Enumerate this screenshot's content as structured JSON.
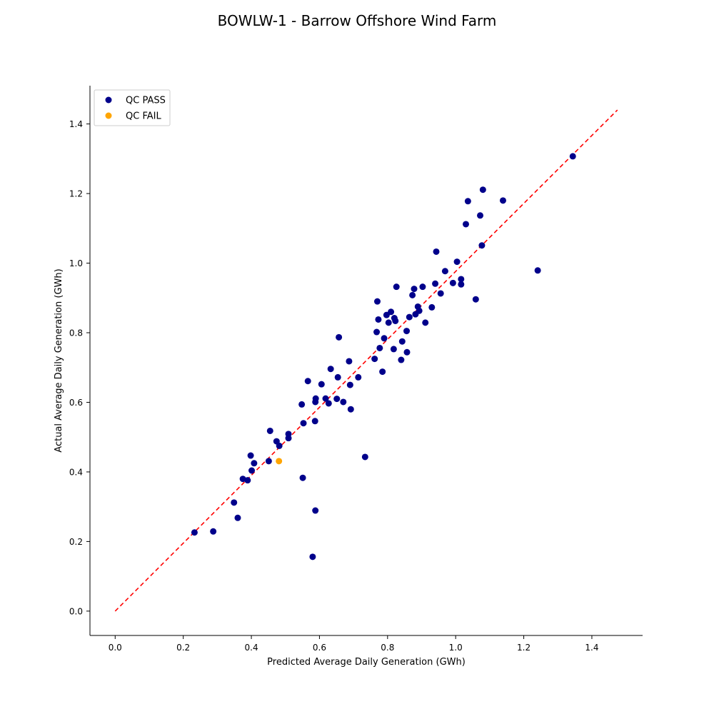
{
  "chart_data": {
    "type": "scatter",
    "title": "BOWLW-1 - Barrow Offshore Wind Farm",
    "xlabel": "Predicted Average Daily Generation (GWh)",
    "ylabel": "Actual Average Daily Generation (GWh)",
    "xlim": [
      -0.074,
      1.549
    ],
    "ylim": [
      -0.07,
      1.51
    ],
    "xticks": [
      0.0,
      0.2,
      0.4,
      0.6,
      0.8,
      1.0,
      1.2,
      1.4
    ],
    "xtick_labels": [
      "0.0",
      "0.2",
      "0.4",
      "0.6",
      "0.8",
      "1.0",
      "1.2",
      "1.4"
    ],
    "yticks": [
      0.0,
      0.2,
      0.4,
      0.6,
      0.8,
      1.0,
      1.2,
      1.4
    ],
    "ytick_labels": [
      "0.0",
      "0.2",
      "0.4",
      "0.6",
      "0.8",
      "1.0",
      "1.2",
      "1.4"
    ],
    "grid": false,
    "legend_position": "top-left",
    "reference_line": {
      "style": "dashed",
      "color": "#ff0000",
      "x": [
        0.0,
        1.475
      ],
      "y": [
        0.0,
        1.44
      ]
    },
    "series": [
      {
        "name": "QC PASS",
        "color": "#00008b",
        "points": [
          [
            0.233,
            0.226
          ],
          [
            0.288,
            0.229
          ],
          [
            0.349,
            0.312
          ],
          [
            0.36,
            0.268
          ],
          [
            0.375,
            0.38
          ],
          [
            0.389,
            0.376
          ],
          [
            0.398,
            0.447
          ],
          [
            0.401,
            0.404
          ],
          [
            0.408,
            0.425
          ],
          [
            0.451,
            0.431
          ],
          [
            0.455,
            0.518
          ],
          [
            0.474,
            0.488
          ],
          [
            0.482,
            0.475
          ],
          [
            0.509,
            0.509
          ],
          [
            0.509,
            0.497
          ],
          [
            0.548,
            0.594
          ],
          [
            0.551,
            0.383
          ],
          [
            0.553,
            0.54
          ],
          [
            0.566,
            0.661
          ],
          [
            0.587,
            0.546
          ],
          [
            0.588,
            0.289
          ],
          [
            0.58,
            0.156
          ],
          [
            0.588,
            0.601
          ],
          [
            0.589,
            0.611
          ],
          [
            0.606,
            0.652
          ],
          [
            0.618,
            0.611
          ],
          [
            0.627,
            0.597
          ],
          [
            0.633,
            0.696
          ],
          [
            0.651,
            0.61
          ],
          [
            0.654,
            0.672
          ],
          [
            0.657,
            0.787
          ],
          [
            0.67,
            0.601
          ],
          [
            0.687,
            0.718
          ],
          [
            0.69,
            0.65
          ],
          [
            0.692,
            0.58
          ],
          [
            0.714,
            0.672
          ],
          [
            0.734,
            0.443
          ],
          [
            0.762,
            0.725
          ],
          [
            0.768,
            0.802
          ],
          [
            0.77,
            0.89
          ],
          [
            0.773,
            0.838
          ],
          [
            0.777,
            0.756
          ],
          [
            0.785,
            0.688
          ],
          [
            0.79,
            0.784
          ],
          [
            0.797,
            0.851
          ],
          [
            0.803,
            0.829
          ],
          [
            0.81,
            0.86
          ],
          [
            0.818,
            0.753
          ],
          [
            0.82,
            0.842
          ],
          [
            0.823,
            0.834
          ],
          [
            0.826,
            0.932
          ],
          [
            0.84,
            0.722
          ],
          [
            0.843,
            0.775
          ],
          [
            0.856,
            0.805
          ],
          [
            0.857,
            0.744
          ],
          [
            0.864,
            0.845
          ],
          [
            0.873,
            0.908
          ],
          [
            0.878,
            0.926
          ],
          [
            0.882,
            0.853
          ],
          [
            0.889,
            0.875
          ],
          [
            0.893,
            0.863
          ],
          [
            0.903,
            0.932
          ],
          [
            0.911,
            0.829
          ],
          [
            0.93,
            0.873
          ],
          [
            0.94,
            0.941
          ],
          [
            0.943,
            1.033
          ],
          [
            0.956,
            0.913
          ],
          [
            0.969,
            0.977
          ],
          [
            0.992,
            0.943
          ],
          [
            1.004,
            1.004
          ],
          [
            1.016,
            0.954
          ],
          [
            1.016,
            0.939
          ],
          [
            1.03,
            1.112
          ],
          [
            1.036,
            1.178
          ],
          [
            1.059,
            0.896
          ],
          [
            1.072,
            1.137
          ],
          [
            1.077,
            1.051
          ],
          [
            1.08,
            1.211
          ],
          [
            1.139,
            1.18
          ],
          [
            1.241,
            0.979
          ],
          [
            1.344,
            1.307
          ]
        ]
      },
      {
        "name": "QC FAIL",
        "color": "#ffa500",
        "points": [
          [
            0.481,
            0.431
          ]
        ]
      }
    ]
  }
}
